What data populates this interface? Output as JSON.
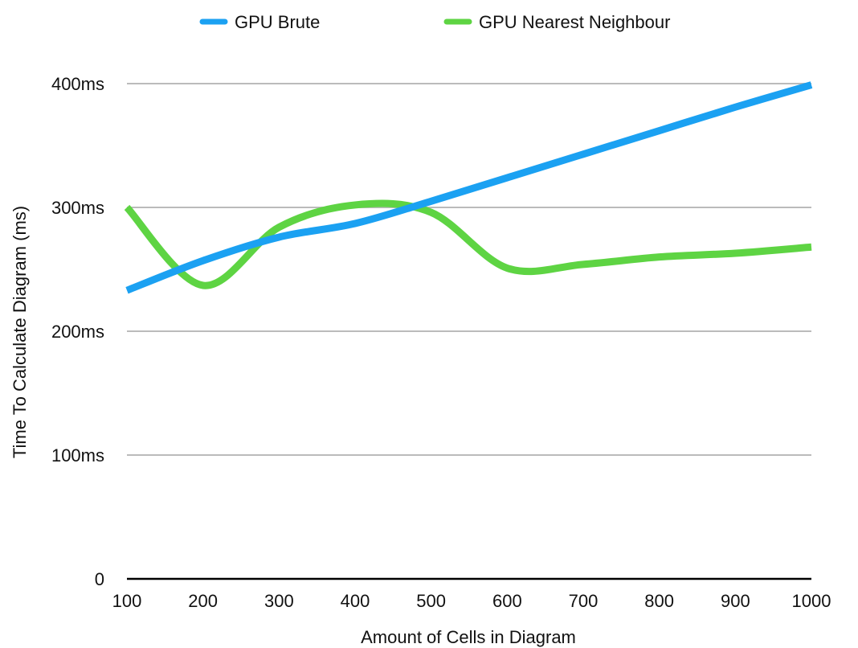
{
  "chart_data": {
    "type": "line",
    "title": "",
    "xlabel": "Amount of Cells in Diagram",
    "ylabel": "Time To Calculate Diagram (ms)",
    "x": [
      100,
      200,
      300,
      400,
      500,
      600,
      700,
      800,
      900,
      1000
    ],
    "xlim": [
      100,
      1000
    ],
    "ylim": [
      0,
      400
    ],
    "yticks": [
      {
        "value": 0,
        "label": "0"
      },
      {
        "value": 100,
        "label": "100ms"
      },
      {
        "value": 200,
        "label": "200ms"
      },
      {
        "value": 300,
        "label": "300ms"
      },
      {
        "value": 400,
        "label": "400ms"
      }
    ],
    "xticks": [
      {
        "value": 100,
        "label": "100"
      },
      {
        "value": 200,
        "label": "200"
      },
      {
        "value": 300,
        "label": "300"
      },
      {
        "value": 400,
        "label": "400"
      },
      {
        "value": 500,
        "label": "500"
      },
      {
        "value": 600,
        "label": "600"
      },
      {
        "value": 700,
        "label": "700"
      },
      {
        "value": 800,
        "label": "800"
      },
      {
        "value": 900,
        "label": "900"
      },
      {
        "value": 1000,
        "label": "1000"
      }
    ],
    "grid": true,
    "legend_position": "top",
    "series": [
      {
        "name": "GPU Brute",
        "color": "#1ba1f2",
        "values": [
          233,
          257,
          276,
          287,
          305,
          324,
          343,
          362,
          381,
          399
        ]
      },
      {
        "name": "GPU Nearest Neighbour",
        "color": "#5ed443",
        "values": [
          300,
          237,
          284,
          302,
          296,
          251,
          254,
          260,
          263,
          268
        ]
      }
    ],
    "colors": {
      "grid": "#bbbbbb",
      "axis": "#000000",
      "text": "#111111"
    }
  }
}
